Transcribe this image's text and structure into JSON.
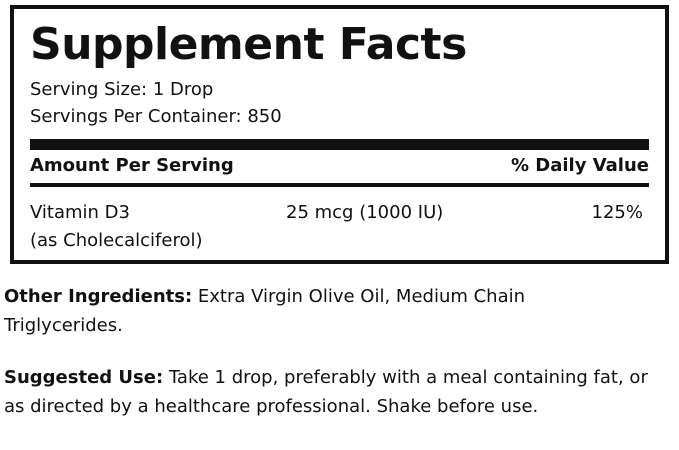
{
  "header": {
    "title": "Supplement Facts",
    "serving_size": "Serving Size: 1 Drop",
    "servings_per_container": "Servings Per Container: 850"
  },
  "table": {
    "columns": [
      "Amount Per Serving",
      "% Daily Value"
    ],
    "rows": [
      {
        "name": "Vitamin D3",
        "form": "(as Cholecalciferol)",
        "amount": "25 mcg (1000 IU)",
        "daily_value": "125%"
      }
    ]
  },
  "other_ingredients": {
    "label": "Other Ingredients:",
    "text": "Extra Virgin Olive Oil, Medium Chain Triglycerides."
  },
  "suggested_use": {
    "label": "Suggested Use:",
    "text": "Take 1 drop, preferably with a meal containing fat, or as directed by a healthcare professional. Shake before use."
  }
}
